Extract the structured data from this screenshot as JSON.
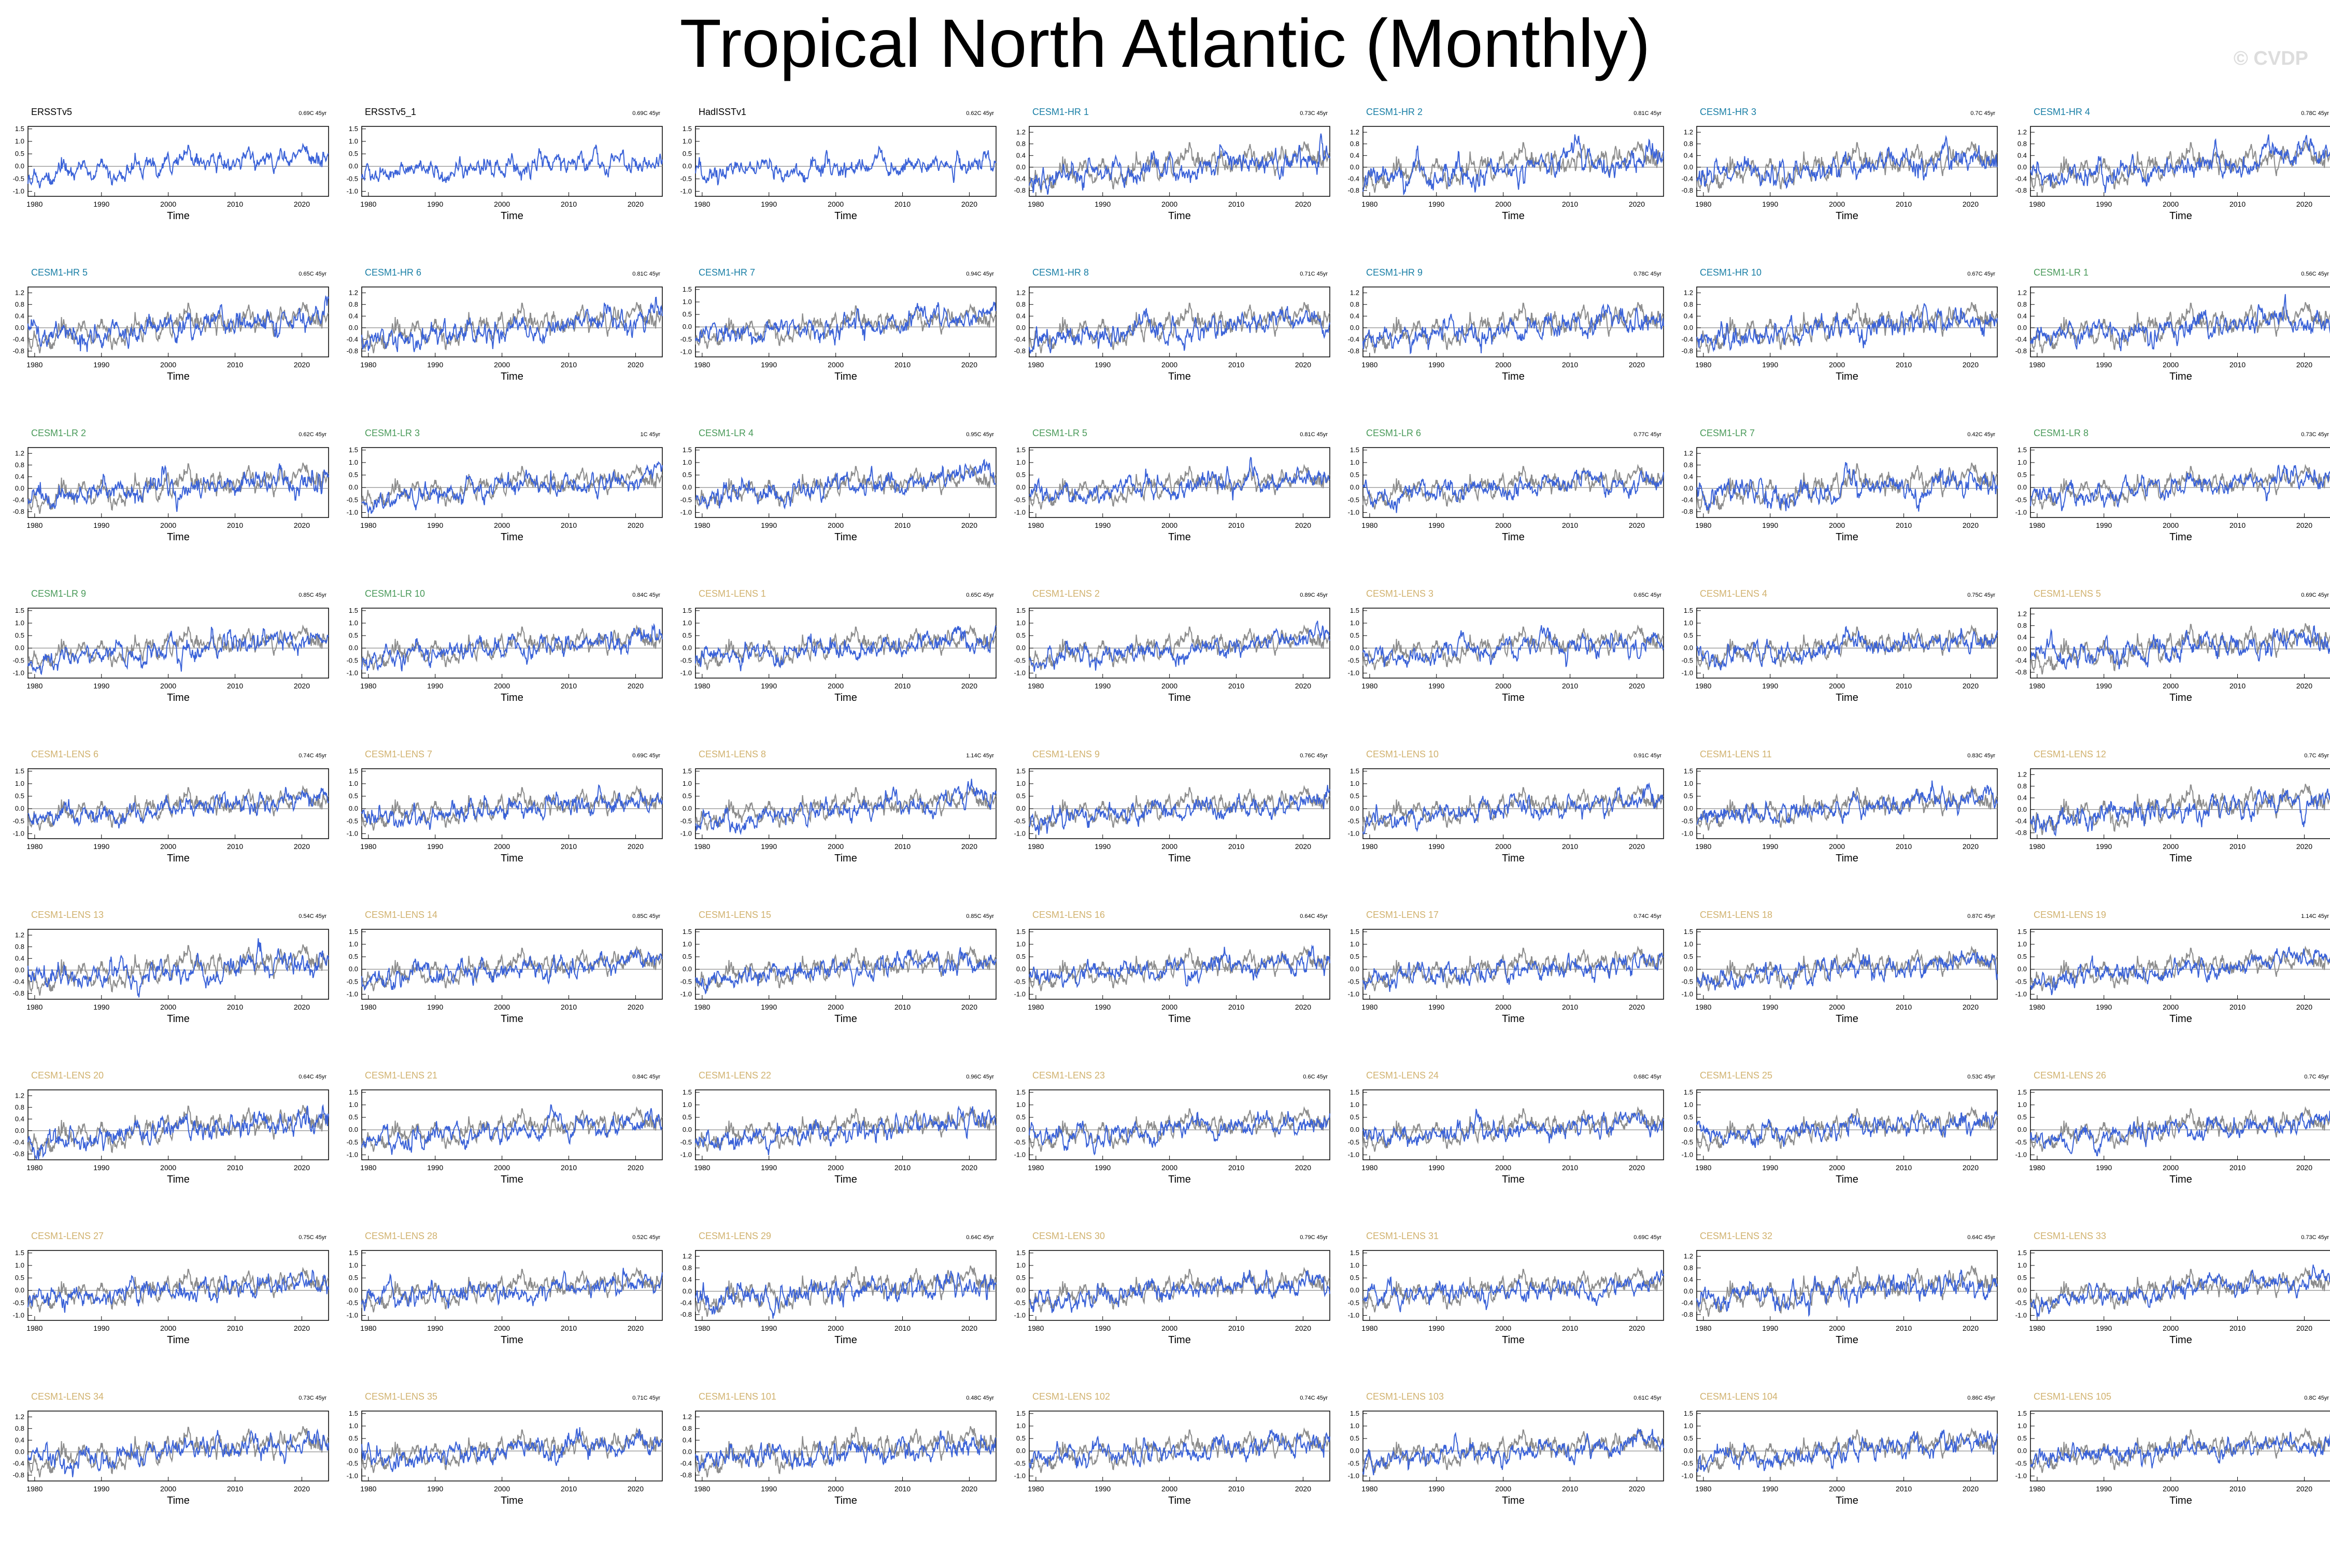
{
  "title": "Tropical North Atlantic (Monthly)",
  "watermark": "© CVDP",
  "colors": {
    "observations": "#000000",
    "cesm1_hr": "#1a7fa6",
    "cesm1_lr": "#4a9a5a",
    "cesm1_lens": "#d1b26f",
    "model_line": "#3a62d8",
    "obs_line": "#8c8c8c",
    "zero_line": "#8c8c8c"
  },
  "chart_data": {
    "type": "line",
    "panel_count": 63,
    "layout": "9 rows x 7 columns of small-multiple time series",
    "xlabel": "Time",
    "xlim": [
      1979,
      2024
    ],
    "xticks": [
      "1980",
      "1990",
      "2000",
      "2010",
      "2020"
    ],
    "ylabel": "",
    "trend_units": "C 45yr",
    "yticks_sets": {
      "A": [
        "1.5",
        "1.0",
        "0.5",
        "0.0",
        "-0.5",
        "-1.0"
      ],
      "B": [
        "1.2",
        "0.8",
        "0.4",
        "0.0",
        "-0.4",
        "-0.8"
      ]
    },
    "series_legend": "blue = dataset/member, gray = observations (first dataset) overlay",
    "panels": [
      {
        "name": "ERSSTv5",
        "trend": "0.69C 45yr",
        "group": "obs",
        "ytick_set": "A",
        "ylim": [
          -1.2,
          1.6
        ]
      },
      {
        "name": "ERSSTv5_1",
        "trend": "0.69C 45yr",
        "group": "obs",
        "ytick_set": "A",
        "ylim": [
          -1.2,
          1.6
        ]
      },
      {
        "name": "HadISSTv1",
        "trend": "0.62C 45yr",
        "group": "obs",
        "ytick_set": "A",
        "ylim": [
          -1.2,
          1.6
        ]
      },
      {
        "name": "CESM1-HR 1",
        "trend": "0.73C 45yr",
        "group": "hr",
        "ytick_set": "B",
        "ylim": [
          -1.0,
          1.4
        ]
      },
      {
        "name": "CESM1-HR 2",
        "trend": "0.81C 45yr",
        "group": "hr",
        "ytick_set": "B",
        "ylim": [
          -1.0,
          1.4
        ]
      },
      {
        "name": "CESM1-HR 3",
        "trend": "0.7C 45yr",
        "group": "hr",
        "ytick_set": "B",
        "ylim": [
          -1.0,
          1.4
        ]
      },
      {
        "name": "CESM1-HR 4",
        "trend": "0.78C 45yr",
        "group": "hr",
        "ytick_set": "B",
        "ylim": [
          -1.0,
          1.4
        ]
      },
      {
        "name": "CESM1-HR 5",
        "trend": "0.65C 45yr",
        "group": "hr",
        "ytick_set": "B",
        "ylim": [
          -1.0,
          1.4
        ]
      },
      {
        "name": "CESM1-HR 6",
        "trend": "0.81C 45yr",
        "group": "hr",
        "ytick_set": "B",
        "ylim": [
          -1.0,
          1.4
        ]
      },
      {
        "name": "CESM1-HR 7",
        "trend": "0.94C 45yr",
        "group": "hr",
        "ytick_set": "A",
        "ylim": [
          -1.2,
          1.6
        ]
      },
      {
        "name": "CESM1-HR 8",
        "trend": "0.71C 45yr",
        "group": "hr",
        "ytick_set": "B",
        "ylim": [
          -1.0,
          1.4
        ]
      },
      {
        "name": "CESM1-HR 9",
        "trend": "0.78C 45yr",
        "group": "hr",
        "ytick_set": "B",
        "ylim": [
          -1.0,
          1.4
        ]
      },
      {
        "name": "CESM1-HR 10",
        "trend": "0.67C 45yr",
        "group": "hr",
        "ytick_set": "B",
        "ylim": [
          -1.0,
          1.4
        ]
      },
      {
        "name": "CESM1-LR 1",
        "trend": "0.56C 45yr",
        "group": "lr",
        "ytick_set": "B",
        "ylim": [
          -1.0,
          1.4
        ]
      },
      {
        "name": "CESM1-LR 2",
        "trend": "0.62C 45yr",
        "group": "lr",
        "ytick_set": "B",
        "ylim": [
          -1.0,
          1.4
        ]
      },
      {
        "name": "CESM1-LR 3",
        "trend": "1C 45yr",
        "group": "lr",
        "ytick_set": "A",
        "ylim": [
          -1.2,
          1.6
        ]
      },
      {
        "name": "CESM1-LR 4",
        "trend": "0.95C 45yr",
        "group": "lr",
        "ytick_set": "A",
        "ylim": [
          -1.2,
          1.6
        ]
      },
      {
        "name": "CESM1-LR 5",
        "trend": "0.81C 45yr",
        "group": "lr",
        "ytick_set": "A",
        "ylim": [
          -1.2,
          1.6
        ]
      },
      {
        "name": "CESM1-LR 6",
        "trend": "0.77C 45yr",
        "group": "lr",
        "ytick_set": "A",
        "ylim": [
          -1.2,
          1.6
        ]
      },
      {
        "name": "CESM1-LR 7",
        "trend": "0.42C 45yr",
        "group": "lr",
        "ytick_set": "B",
        "ylim": [
          -1.0,
          1.4
        ]
      },
      {
        "name": "CESM1-LR 8",
        "trend": "0.73C 45yr",
        "group": "lr",
        "ytick_set": "A",
        "ylim": [
          -1.2,
          1.6
        ]
      },
      {
        "name": "CESM1-LR 9",
        "trend": "0.85C 45yr",
        "group": "lr",
        "ytick_set": "A",
        "ylim": [
          -1.2,
          1.6
        ]
      },
      {
        "name": "CESM1-LR 10",
        "trend": "0.84C 45yr",
        "group": "lr",
        "ytick_set": "A",
        "ylim": [
          -1.2,
          1.6
        ]
      },
      {
        "name": "CESM1-LENS 1",
        "trend": "0.65C 45yr",
        "group": "lens",
        "ytick_set": "A",
        "ylim": [
          -1.2,
          1.6
        ]
      },
      {
        "name": "CESM1-LENS 2",
        "trend": "0.89C 45yr",
        "group": "lens",
        "ytick_set": "A",
        "ylim": [
          -1.2,
          1.6
        ]
      },
      {
        "name": "CESM1-LENS 3",
        "trend": "0.65C 45yr",
        "group": "lens",
        "ytick_set": "A",
        "ylim": [
          -1.2,
          1.6
        ]
      },
      {
        "name": "CESM1-LENS 4",
        "trend": "0.75C 45yr",
        "group": "lens",
        "ytick_set": "A",
        "ylim": [
          -1.2,
          1.6
        ]
      },
      {
        "name": "CESM1-LENS 5",
        "trend": "0.69C 45yr",
        "group": "lens",
        "ytick_set": "B",
        "ylim": [
          -1.0,
          1.4
        ]
      },
      {
        "name": "CESM1-LENS 6",
        "trend": "0.74C 45yr",
        "group": "lens",
        "ytick_set": "A",
        "ylim": [
          -1.2,
          1.6
        ]
      },
      {
        "name": "CESM1-LENS 7",
        "trend": "0.69C 45yr",
        "group": "lens",
        "ytick_set": "A",
        "ylim": [
          -1.2,
          1.6
        ]
      },
      {
        "name": "CESM1-LENS 8",
        "trend": "1.14C 45yr",
        "group": "lens",
        "ytick_set": "A",
        "ylim": [
          -1.2,
          1.6
        ]
      },
      {
        "name": "CESM1-LENS 9",
        "trend": "0.76C 45yr",
        "group": "lens",
        "ytick_set": "A",
        "ylim": [
          -1.2,
          1.6
        ]
      },
      {
        "name": "CESM1-LENS 10",
        "trend": "0.91C 45yr",
        "group": "lens",
        "ytick_set": "A",
        "ylim": [
          -1.2,
          1.6
        ]
      },
      {
        "name": "CESM1-LENS 11",
        "trend": "0.83C 45yr",
        "group": "lens",
        "ytick_set": "A",
        "ylim": [
          -1.2,
          1.6
        ]
      },
      {
        "name": "CESM1-LENS 12",
        "trend": "0.7C 45yr",
        "group": "lens",
        "ytick_set": "B",
        "ylim": [
          -1.0,
          1.4
        ]
      },
      {
        "name": "CESM1-LENS 13",
        "trend": "0.54C 45yr",
        "group": "lens",
        "ytick_set": "B",
        "ylim": [
          -1.0,
          1.4
        ]
      },
      {
        "name": "CESM1-LENS 14",
        "trend": "0.85C 45yr",
        "group": "lens",
        "ytick_set": "A",
        "ylim": [
          -1.2,
          1.6
        ]
      },
      {
        "name": "CESM1-LENS 15",
        "trend": "0.85C 45yr",
        "group": "lens",
        "ytick_set": "A",
        "ylim": [
          -1.2,
          1.6
        ]
      },
      {
        "name": "CESM1-LENS 16",
        "trend": "0.64C 45yr",
        "group": "lens",
        "ytick_set": "A",
        "ylim": [
          -1.2,
          1.6
        ]
      },
      {
        "name": "CESM1-LENS 17",
        "trend": "0.74C 45yr",
        "group": "lens",
        "ytick_set": "A",
        "ylim": [
          -1.2,
          1.6
        ]
      },
      {
        "name": "CESM1-LENS 18",
        "trend": "0.87C 45yr",
        "group": "lens",
        "ytick_set": "A",
        "ylim": [
          -1.2,
          1.6
        ]
      },
      {
        "name": "CESM1-LENS 19",
        "trend": "1.14C 45yr",
        "group": "lens",
        "ytick_set": "A",
        "ylim": [
          -1.2,
          1.6
        ]
      },
      {
        "name": "CESM1-LENS 20",
        "trend": "0.64C 45yr",
        "group": "lens",
        "ytick_set": "B",
        "ylim": [
          -1.0,
          1.4
        ]
      },
      {
        "name": "CESM1-LENS 21",
        "trend": "0.84C 45yr",
        "group": "lens",
        "ytick_set": "A",
        "ylim": [
          -1.2,
          1.6
        ]
      },
      {
        "name": "CESM1-LENS 22",
        "trend": "0.96C 45yr",
        "group": "lens",
        "ytick_set": "A",
        "ylim": [
          -1.2,
          1.6
        ]
      },
      {
        "name": "CESM1-LENS 23",
        "trend": "0.6C 45yr",
        "group": "lens",
        "ytick_set": "A",
        "ylim": [
          -1.2,
          1.6
        ]
      },
      {
        "name": "CESM1-LENS 24",
        "trend": "0.68C 45yr",
        "group": "lens",
        "ytick_set": "A",
        "ylim": [
          -1.2,
          1.6
        ]
      },
      {
        "name": "CESM1-LENS 25",
        "trend": "0.53C 45yr",
        "group": "lens",
        "ytick_set": "A",
        "ylim": [
          -1.2,
          1.6
        ]
      },
      {
        "name": "CESM1-LENS 26",
        "trend": "0.7C 45yr",
        "group": "lens",
        "ytick_set": "A",
        "ylim": [
          -1.2,
          1.6
        ]
      },
      {
        "name": "CESM1-LENS 27",
        "trend": "0.75C 45yr",
        "group": "lens",
        "ytick_set": "A",
        "ylim": [
          -1.2,
          1.6
        ]
      },
      {
        "name": "CESM1-LENS 28",
        "trend": "0.52C 45yr",
        "group": "lens",
        "ytick_set": "A",
        "ylim": [
          -1.2,
          1.6
        ]
      },
      {
        "name": "CESM1-LENS 29",
        "trend": "0.64C 45yr",
        "group": "lens",
        "ytick_set": "B",
        "ylim": [
          -1.0,
          1.4
        ]
      },
      {
        "name": "CESM1-LENS 30",
        "trend": "0.79C 45yr",
        "group": "lens",
        "ytick_set": "A",
        "ylim": [
          -1.2,
          1.6
        ]
      },
      {
        "name": "CESM1-LENS 31",
        "trend": "0.69C 45yr",
        "group": "lens",
        "ytick_set": "A",
        "ylim": [
          -1.2,
          1.6
        ]
      },
      {
        "name": "CESM1-LENS 32",
        "trend": "0.64C 45yr",
        "group": "lens",
        "ytick_set": "B",
        "ylim": [
          -1.0,
          1.4
        ]
      },
      {
        "name": "CESM1-LENS 33",
        "trend": "0.73C 45yr",
        "group": "lens",
        "ytick_set": "A",
        "ylim": [
          -1.2,
          1.6
        ]
      },
      {
        "name": "CESM1-LENS 34",
        "trend": "0.73C 45yr",
        "group": "lens",
        "ytick_set": "B",
        "ylim": [
          -1.0,
          1.4
        ]
      },
      {
        "name": "CESM1-LENS 35",
        "trend": "0.71C 45yr",
        "group": "lens",
        "ytick_set": "A",
        "ylim": [
          -1.2,
          1.6
        ]
      },
      {
        "name": "CESM1-LENS 101",
        "trend": "0.48C 45yr",
        "group": "lens",
        "ytick_set": "B",
        "ylim": [
          -1.0,
          1.4
        ]
      },
      {
        "name": "CESM1-LENS 102",
        "trend": "0.74C 45yr",
        "group": "lens",
        "ytick_set": "A",
        "ylim": [
          -1.2,
          1.6
        ]
      },
      {
        "name": "CESM1-LENS 103",
        "trend": "0.61C 45yr",
        "group": "lens",
        "ytick_set": "A",
        "ylim": [
          -1.2,
          1.6
        ]
      },
      {
        "name": "CESM1-LENS 104",
        "trend": "0.86C 45yr",
        "group": "lens",
        "ytick_set": "A",
        "ylim": [
          -1.2,
          1.6
        ]
      },
      {
        "name": "CESM1-LENS 105",
        "trend": "0.8C 45yr",
        "group": "lens",
        "ytick_set": "A",
        "ylim": [
          -1.2,
          1.6
        ]
      }
    ]
  }
}
